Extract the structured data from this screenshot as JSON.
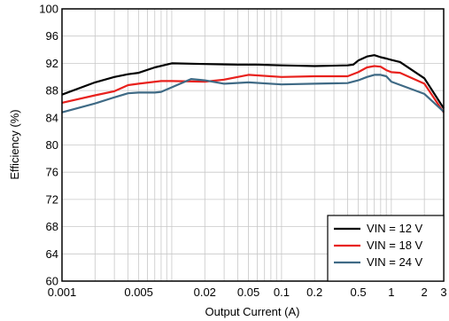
{
  "chart_data": {
    "type": "line",
    "xscale": "log",
    "xlabel": "Output Current (A)",
    "ylabel": "Efficiency (%)",
    "xlim": [
      0.001,
      3
    ],
    "ylim": [
      60,
      100
    ],
    "grid": true,
    "legend_position": "bottom-right",
    "x_ticks": [
      {
        "value": 0.001,
        "label": "0.001"
      },
      {
        "value": 0.005,
        "label": "0.005"
      },
      {
        "value": 0.02,
        "label": "0.02"
      },
      {
        "value": 0.05,
        "label": "0.05"
      },
      {
        "value": 0.1,
        "label": "0.1"
      },
      {
        "value": 0.2,
        "label": "0.2"
      },
      {
        "value": 0.5,
        "label": "0.5"
      },
      {
        "value": 1,
        "label": "1"
      },
      {
        "value": 2,
        "label": "2"
      },
      {
        "value": 3,
        "label": "3"
      }
    ],
    "y_ticks": [
      60,
      64,
      68,
      72,
      76,
      80,
      84,
      88,
      92,
      96,
      100
    ],
    "series": [
      {
        "name": "VIN = 12 V",
        "color": "#000000",
        "points": [
          [
            0.001,
            87.4
          ],
          [
            0.002,
            89.2
          ],
          [
            0.003,
            90.0
          ],
          [
            0.004,
            90.4
          ],
          [
            0.005,
            90.6
          ],
          [
            0.007,
            91.4
          ],
          [
            0.01,
            92.0
          ],
          [
            0.02,
            91.9
          ],
          [
            0.04,
            91.8
          ],
          [
            0.06,
            91.8
          ],
          [
            0.1,
            91.7
          ],
          [
            0.2,
            91.6
          ],
          [
            0.4,
            91.7
          ],
          [
            0.45,
            91.8
          ],
          [
            0.5,
            92.4
          ],
          [
            0.6,
            93.0
          ],
          [
            0.7,
            93.2
          ],
          [
            0.8,
            92.9
          ],
          [
            0.9,
            92.7
          ],
          [
            1.0,
            92.5
          ],
          [
            1.2,
            92.2
          ],
          [
            2.0,
            89.8
          ],
          [
            3.0,
            85.4
          ]
        ]
      },
      {
        "name": "VIN = 18 V",
        "color": "#e8211d",
        "points": [
          [
            0.001,
            86.2
          ],
          [
            0.002,
            87.3
          ],
          [
            0.003,
            87.9
          ],
          [
            0.004,
            88.8
          ],
          [
            0.005,
            89.0
          ],
          [
            0.008,
            89.4
          ],
          [
            0.01,
            89.4
          ],
          [
            0.02,
            89.3
          ],
          [
            0.03,
            89.6
          ],
          [
            0.05,
            90.3
          ],
          [
            0.1,
            90.0
          ],
          [
            0.2,
            90.1
          ],
          [
            0.4,
            90.1
          ],
          [
            0.5,
            90.7
          ],
          [
            0.6,
            91.4
          ],
          [
            0.7,
            91.6
          ],
          [
            0.8,
            91.5
          ],
          [
            0.9,
            91.0
          ],
          [
            1.0,
            90.7
          ],
          [
            1.2,
            90.6
          ],
          [
            2.0,
            89.0
          ],
          [
            3.0,
            84.8
          ]
        ]
      },
      {
        "name": "VIN = 24 V",
        "color": "#3f6a85",
        "points": [
          [
            0.001,
            84.8
          ],
          [
            0.002,
            86.1
          ],
          [
            0.003,
            87.0
          ],
          [
            0.004,
            87.6
          ],
          [
            0.005,
            87.7
          ],
          [
            0.007,
            87.7
          ],
          [
            0.008,
            87.8
          ],
          [
            0.015,
            89.7
          ],
          [
            0.02,
            89.5
          ],
          [
            0.03,
            89.0
          ],
          [
            0.05,
            89.2
          ],
          [
            0.1,
            88.9
          ],
          [
            0.2,
            89.0
          ],
          [
            0.4,
            89.1
          ],
          [
            0.5,
            89.5
          ],
          [
            0.6,
            90.0
          ],
          [
            0.7,
            90.3
          ],
          [
            0.8,
            90.3
          ],
          [
            0.9,
            90.1
          ],
          [
            1.0,
            89.3
          ],
          [
            2.0,
            87.5
          ],
          [
            3.0,
            84.9
          ]
        ]
      }
    ]
  }
}
